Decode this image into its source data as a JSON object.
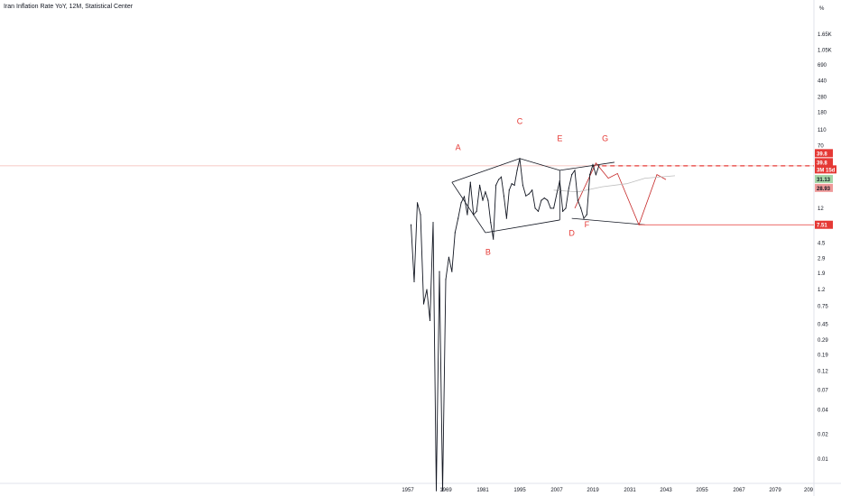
{
  "chart_data": {
    "type": "line",
    "title": "Iran Inflation Rate YoY, 12M, Statistical Center",
    "unit_label": "%",
    "scale": "log",
    "y_ticks": [
      "1.65K",
      "1.05K",
      "690",
      "440",
      "280",
      "180",
      "110",
      "70",
      "12",
      "4.5",
      "2.9",
      "1.9",
      "1.2",
      "0.75",
      "0.45",
      "0.29",
      "0.19",
      "0.12",
      "0.07",
      "0.04",
      "0.02",
      "0.01"
    ],
    "x_ticks": [
      "1957",
      "1969",
      "1981",
      "1995",
      "2007",
      "2019",
      "2031",
      "2043",
      "2055",
      "2067",
      "2079",
      "209"
    ],
    "ylim": [
      0.005,
      2600
    ],
    "xlim": [
      1957,
      2093
    ],
    "series": [
      {
        "color": "#131722",
        "x": [
          1958,
          1959,
          1960,
          1961,
          1962,
          1963,
          1964,
          1965,
          1966,
          1967,
          1968,
          1969,
          1970,
          1971,
          1972,
          1973,
          1974,
          1975,
          1976,
          1977,
          1978,
          1979,
          1980,
          1981,
          1982,
          1983,
          1984,
          1985,
          1986,
          1987,
          1988,
          1989,
          1990,
          1991,
          1992,
          1993,
          1994,
          1995,
          1996,
          1997,
          1998,
          1999,
          2000,
          2001,
          2002,
          2003,
          2004,
          2005,
          2006,
          2007,
          2008,
          2009,
          2010,
          2011,
          2012,
          2013,
          2014,
          2015,
          2016,
          2017,
          2018,
          2019,
          2020,
          2021
        ],
        "y": [
          7.5,
          1.5,
          14,
          10,
          0.8,
          1.2,
          0.5,
          8,
          0.004,
          2,
          0.004,
          1.6,
          3,
          2,
          6,
          9,
          14,
          16.6,
          10,
          25,
          10,
          11,
          23,
          15,
          19,
          15,
          8,
          5,
          23,
          27,
          29,
          17,
          9,
          20,
          24,
          23,
          35,
          49,
          23,
          17,
          18,
          20,
          12,
          11,
          15,
          16,
          15,
          12,
          12,
          18,
          26,
          11,
          12,
          21,
          31,
          35,
          15,
          12,
          9,
          10,
          31,
          41,
          31,
          40
        ]
      }
    ],
    "wave_labels": [
      "A",
      "B",
      "C",
      "D",
      "E",
      "F",
      "G"
    ],
    "badges": [
      {
        "text": "39.8",
        "bg": "#e53935",
        "fg": "#ffffff"
      },
      {
        "text": "39.8",
        "bg": "#e53935",
        "fg": "#ffffff"
      },
      {
        "text": "3M 15d",
        "bg": "#e53935",
        "fg": "#ffffff"
      },
      {
        "text": "31.13",
        "bg": "#a5d6a7",
        "fg": "#131722"
      },
      {
        "text": "28.93",
        "bg": "#ef9a9a",
        "fg": "#131722"
      },
      {
        "text": "7.51",
        "bg": "#e53935",
        "fg": "#ffffff"
      }
    ],
    "grid": false
  }
}
